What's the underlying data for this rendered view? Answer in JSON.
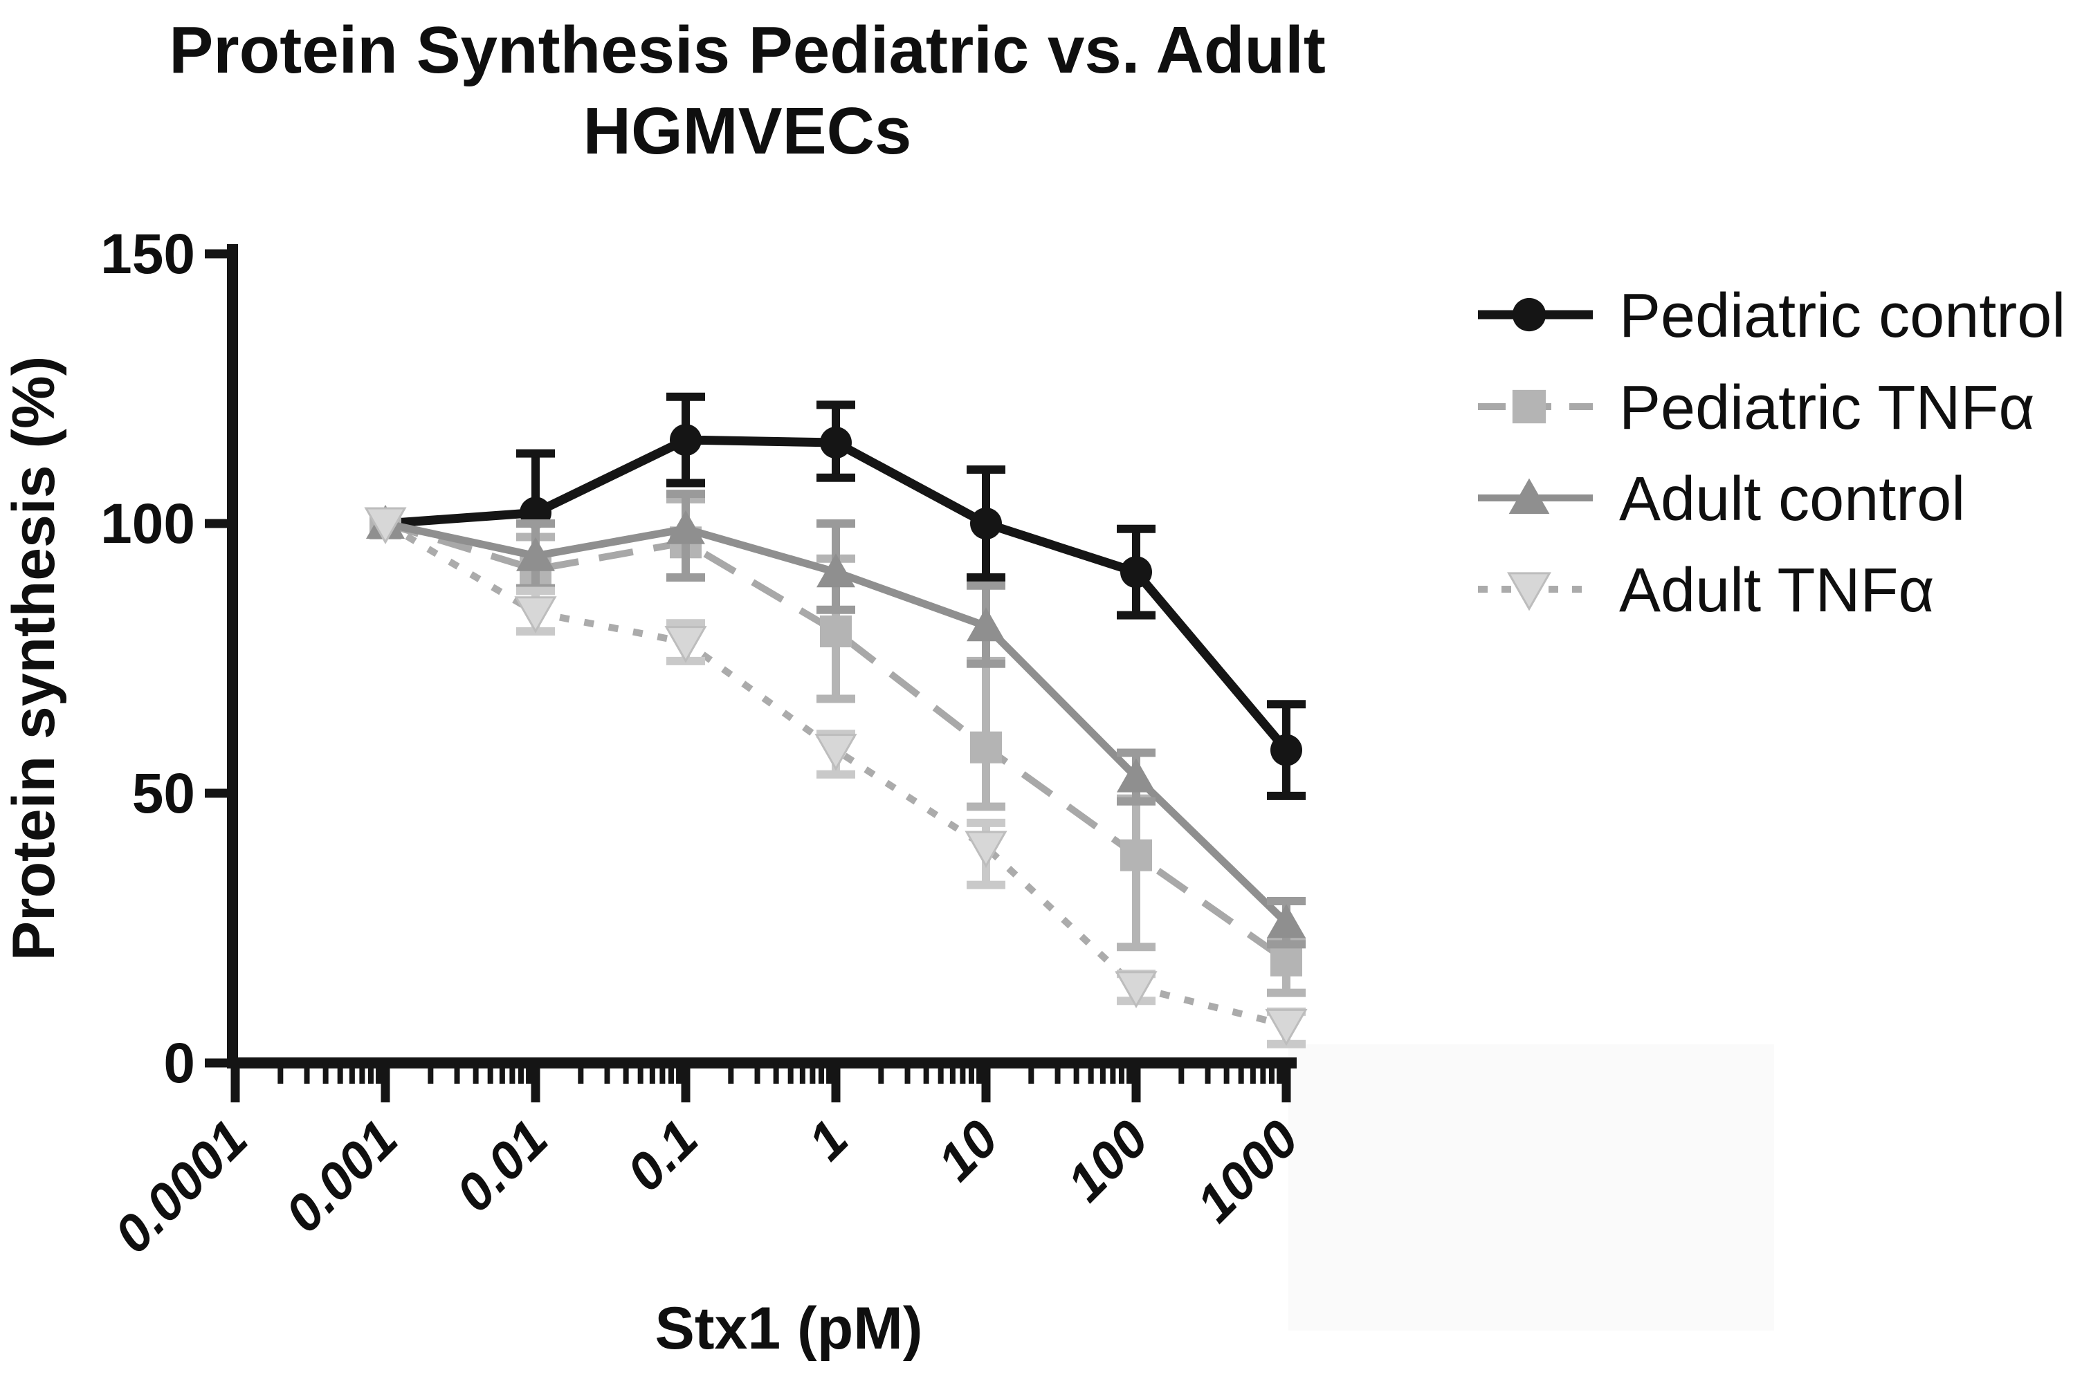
{
  "figure": {
    "title_line1": "Protein Synthesis Pediatric vs. Adult",
    "title_line2": "HGMVECs"
  },
  "chart_data": {
    "type": "line",
    "title": "Protein Synthesis Pediatric vs. Adult HGMVECs",
    "xlabel": "Stx1 (pM)",
    "ylabel": "Protein synthesis (%)",
    "x_scale": "log",
    "x_decade_labels": [
      "0.0001",
      "0.001",
      "0.01",
      "0.1",
      "1",
      "10",
      "100",
      "1000"
    ],
    "x_values_pM": [
      0.001,
      0.01,
      0.1,
      1,
      10,
      100,
      1000
    ],
    "y_ticks": [
      0,
      50,
      100,
      150
    ],
    "ylim": [
      0,
      150
    ],
    "grid": false,
    "legend_position": "right-top",
    "background_color": "#ffffff",
    "series": [
      {
        "name": "Pediatric control",
        "marker": "circle",
        "line": "solid",
        "color": "#151515",
        "line_color": "#151515",
        "err_color": "#151515",
        "values": [
          100,
          102,
          115.5,
          115,
          100,
          91,
          58
        ],
        "err_up": [
          0,
          11,
          8,
          7,
          10,
          8,
          8.5
        ],
        "err_down": [
          0,
          0,
          8,
          6.5,
          10,
          8,
          8.5
        ]
      },
      {
        "name": "Pediatric TNFα",
        "marker": "square",
        "line": "dashed",
        "color": "#b4b4b4",
        "line_color": "#a8a8a8",
        "err_color": "#b4b4b4",
        "values": [
          100,
          91.5,
          96.5,
          80,
          58.5,
          38.5,
          19
        ],
        "err_up": [
          0,
          6,
          8,
          13.5,
          16,
          10.5,
          3.5
        ],
        "err_down": [
          0,
          4,
          6.5,
          12.5,
          11,
          17,
          6
        ]
      },
      {
        "name": "Adult control",
        "marker": "triangle-up",
        "line": "solid",
        "color": "#8f8f8f",
        "line_color": "#8f8f8f",
        "err_color": "#9a9a9a",
        "values": [
          100,
          94,
          99,
          91,
          81,
          53,
          26
        ],
        "err_up": [
          0,
          6,
          6.5,
          9,
          7.5,
          4.5,
          4
        ],
        "err_down": [
          0,
          6,
          9,
          7,
          7,
          4.5,
          4
        ]
      },
      {
        "name": "Adult TNFα",
        "marker": "triangle-down",
        "line": "dotted",
        "color": "#d7d7d7",
        "line_color": "#ababab",
        "err_color": "#c9c9c9",
        "values": [
          100,
          83.5,
          78,
          58,
          40,
          14,
          7
        ],
        "err_up": [
          0,
          4,
          3.5,
          3,
          4.5,
          2.5,
          2.5
        ],
        "err_down": [
          0,
          3.5,
          3.5,
          4.5,
          7,
          2.5,
          3.5
        ]
      }
    ]
  }
}
